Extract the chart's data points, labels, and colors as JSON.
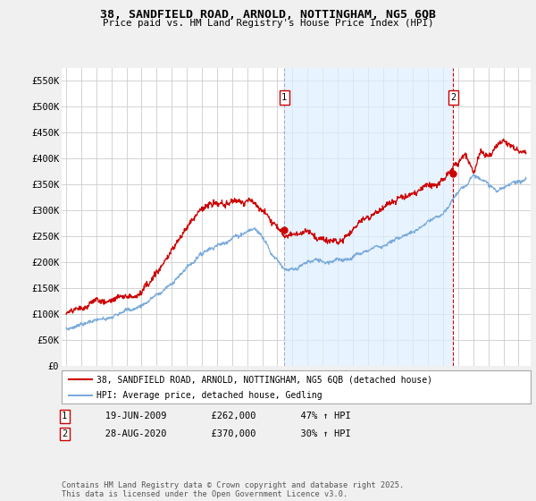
{
  "title": "38, SANDFIELD ROAD, ARNOLD, NOTTINGHAM, NG5 6QB",
  "subtitle": "Price paid vs. HM Land Registry's House Price Index (HPI)",
  "ylabel_ticks": [
    "£0",
    "£50K",
    "£100K",
    "£150K",
    "£200K",
    "£250K",
    "£300K",
    "£350K",
    "£400K",
    "£450K",
    "£500K",
    "£550K"
  ],
  "ytick_values": [
    0,
    50000,
    100000,
    150000,
    200000,
    250000,
    300000,
    350000,
    400000,
    450000,
    500000,
    550000
  ],
  "ylim": [
    0,
    575000
  ],
  "xlim_start": 1994.7,
  "xlim_end": 2025.8,
  "red_color": "#cc0000",
  "blue_color": "#7aabdc",
  "marker1_x": 2009.47,
  "marker1_y": 262000,
  "marker2_x": 2020.66,
  "marker2_y": 370000,
  "annotation1": [
    "1",
    "19-JUN-2009",
    "£262,000",
    "47% ↑ HPI"
  ],
  "annotation2": [
    "2",
    "28-AUG-2020",
    "£370,000",
    "30% ↑ HPI"
  ],
  "legend1": "38, SANDFIELD ROAD, ARNOLD, NOTTINGHAM, NG5 6QB (detached house)",
  "legend2": "HPI: Average price, detached house, Gedling",
  "footer": "Contains HM Land Registry data © Crown copyright and database right 2025.\nThis data is licensed under the Open Government Licence v3.0.",
  "background_color": "#f0f0f0",
  "plot_bg_color": "#ffffff",
  "grid_color": "#cccccc",
  "shade_color": "#ddeeff"
}
